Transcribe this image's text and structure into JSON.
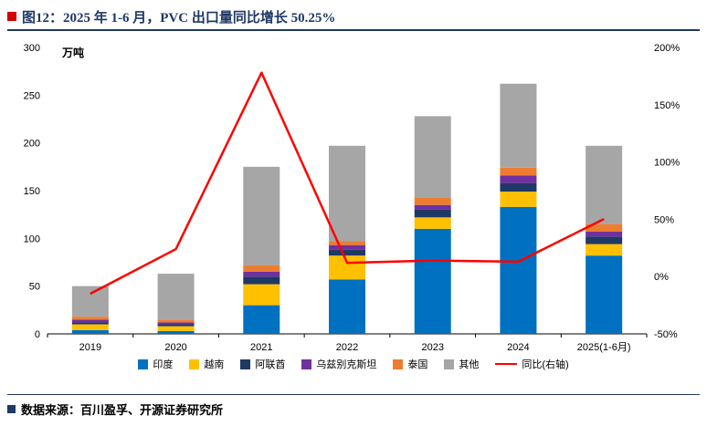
{
  "title": "图12：2025 年 1-6 月，PVC 出口量同比增长 50.25%",
  "source": "数据来源：百川盈孚、开源证券研究所",
  "chart_data": {
    "type": "bar",
    "stacked": true,
    "unit_label": "万吨",
    "categories": [
      "2019",
      "2020",
      "2021",
      "2022",
      "2023",
      "2024",
      "2025(1-6月)"
    ],
    "series": [
      {
        "name": "印度",
        "color": "#0070c0",
        "values": [
          4,
          3,
          30,
          57,
          110,
          133,
          82
        ]
      },
      {
        "name": "越南",
        "color": "#ffc000",
        "values": [
          6,
          5,
          22,
          25,
          12,
          16,
          12
        ]
      },
      {
        "name": "阿联酋",
        "color": "#203864",
        "values": [
          2,
          2,
          8,
          6,
          8,
          9,
          8
        ]
      },
      {
        "name": "乌兹别克斯坦",
        "color": "#7030a0",
        "values": [
          3,
          2,
          5,
          5,
          5,
          8,
          5
        ]
      },
      {
        "name": "泰国",
        "color": "#ed7d31",
        "values": [
          3,
          3,
          7,
          4,
          8,
          8,
          8
        ]
      },
      {
        "name": "其他",
        "color": "#a6a6a6",
        "values": [
          32,
          48,
          103,
          100,
          85,
          88,
          82
        ]
      }
    ],
    "line_series": {
      "name": "同比(右轴)",
      "color": "#ff0000",
      "values": [
        -15,
        24,
        178,
        12,
        14,
        13,
        50.25
      ]
    },
    "left_axis": {
      "min": 0,
      "max": 300,
      "step": 50,
      "suffix": ""
    },
    "right_axis": {
      "min": -50,
      "max": 200,
      "step": 50,
      "suffix": "%"
    },
    "legend_position": "bottom",
    "grid": false
  }
}
